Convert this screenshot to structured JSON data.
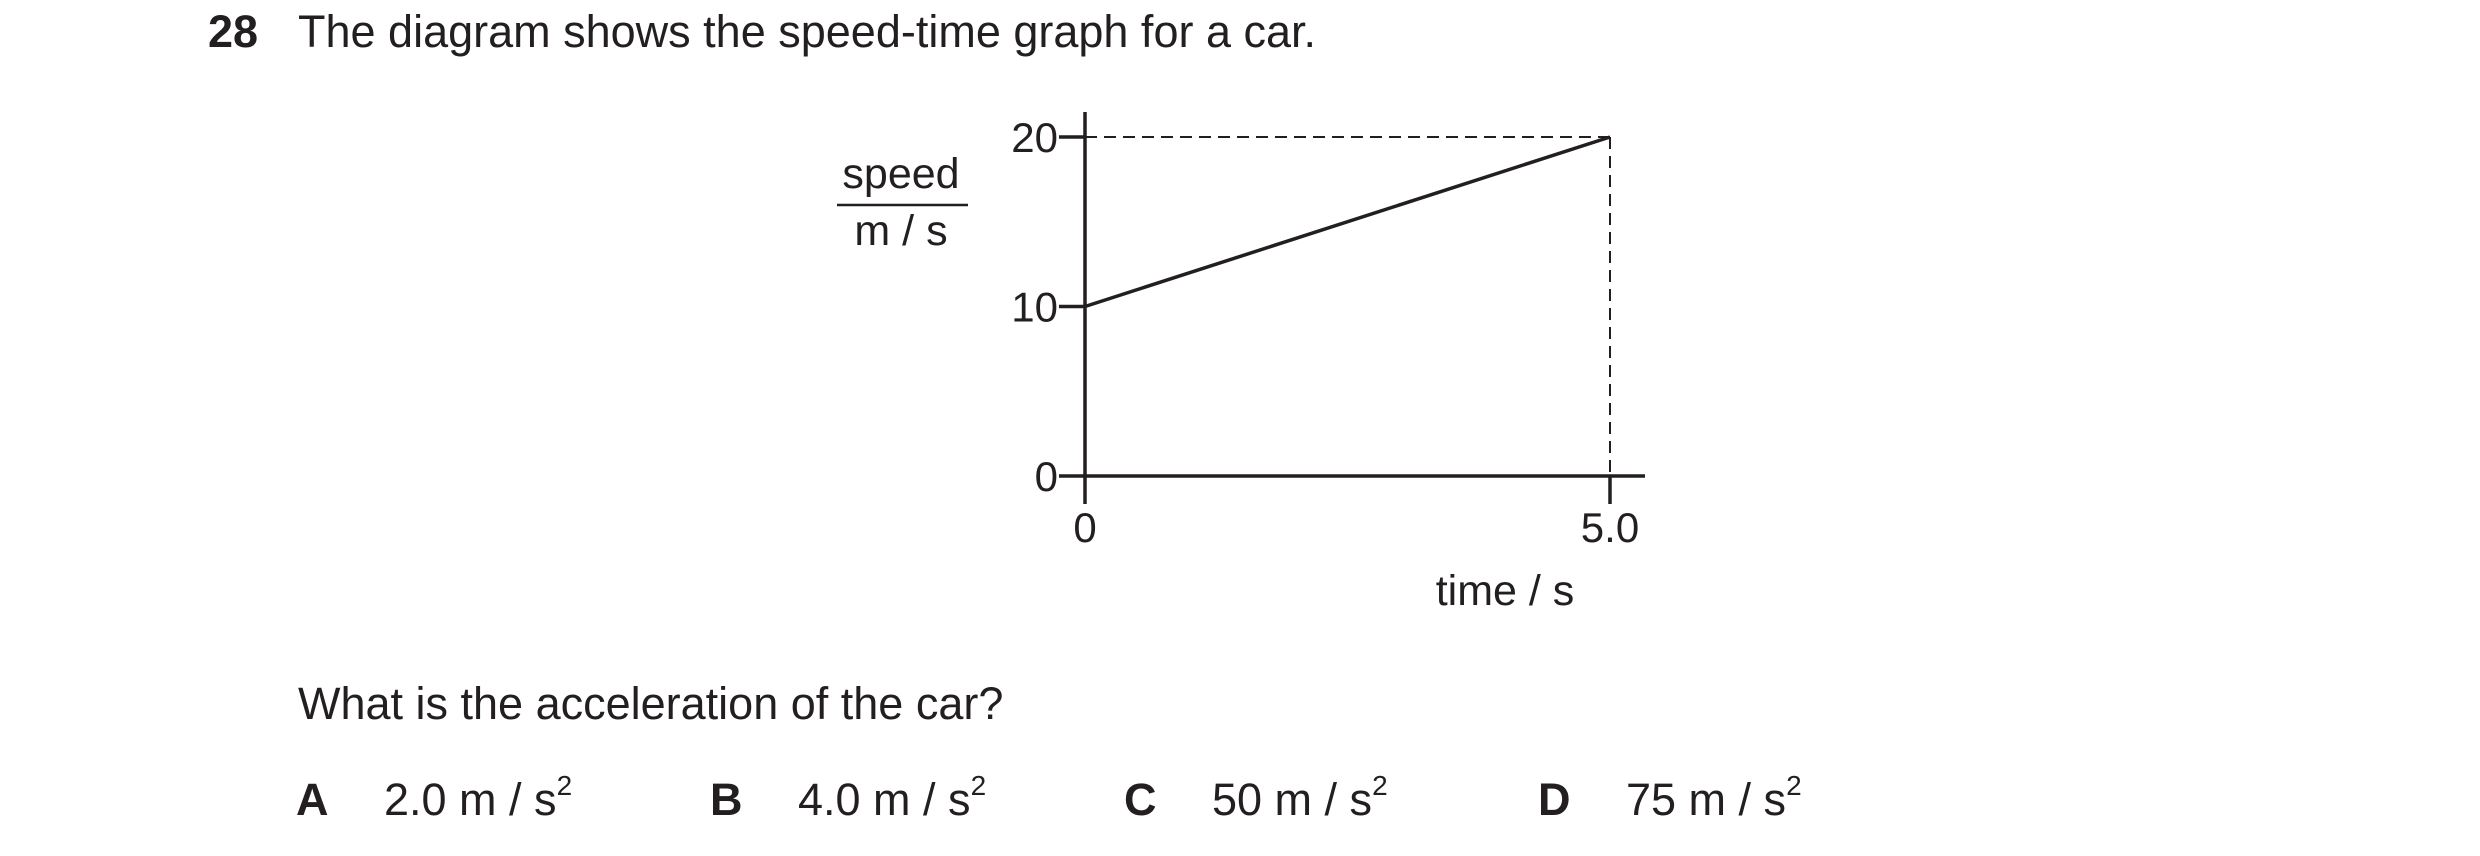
{
  "question": {
    "number": "28",
    "text": "The diagram shows the speed-time graph for a car.",
    "prompt": "What is the acceleration of the car?"
  },
  "chart_data": {
    "type": "line",
    "ylabel_top": "speed",
    "ylabel_bottom": "m / s",
    "xlabel": "time / s",
    "x_ticks": [
      "0",
      "5.0"
    ],
    "y_ticks": [
      "0",
      "10",
      "20"
    ],
    "xlim": [
      0,
      5.0
    ],
    "ylim": [
      0,
      20
    ],
    "grid": false,
    "series": [
      {
        "x": [
          0,
          5.0
        ],
        "y": [
          10,
          20
        ]
      }
    ],
    "guides": [
      {
        "from": [
          0,
          20
        ],
        "to": [
          5.0,
          20
        ],
        "style": "dashed"
      },
      {
        "from": [
          5.0,
          20
        ],
        "to": [
          5.0,
          0
        ],
        "style": "dashed"
      }
    ]
  },
  "options": [
    {
      "letter": "A",
      "value": "2.0 m / s",
      "power": "2"
    },
    {
      "letter": "B",
      "value": "4.0 m / s",
      "power": "2"
    },
    {
      "letter": "C",
      "value": "50 m / s",
      "power": "2"
    },
    {
      "letter": "D",
      "value": "75 m / s",
      "power": "2"
    }
  ],
  "colors": {
    "ink": "#231f20"
  }
}
